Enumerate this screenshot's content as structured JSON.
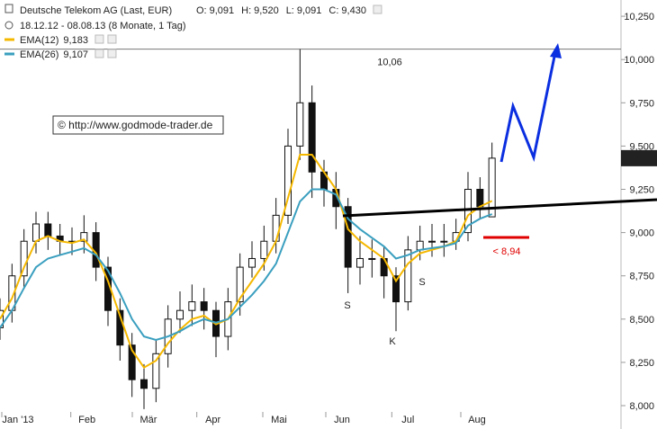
{
  "chart_data": {
    "type": "candlestick",
    "header": {
      "title": "Deutsche Telekom AG (Last, EUR)",
      "ohlc": [
        {
          "label": "O:",
          "value": "9,091"
        },
        {
          "label": "H:",
          "value": "9,520"
        },
        {
          "label": "L:",
          "value": "9,091"
        },
        {
          "label": "C:",
          "value": "9,430"
        }
      ],
      "period": "18.12.12 - 08.08.13 (8 Monate, 1 Tag)"
    },
    "watermark": "© http://www.godmode-trader.de",
    "x": [
      0,
      4,
      8,
      12,
      16,
      20,
      24,
      28,
      32,
      36,
      40,
      44,
      48,
      52,
      56,
      60,
      64,
      68,
      72,
      76,
      80,
      84,
      88,
      92,
      96,
      100,
      104,
      108,
      112,
      116,
      120,
      124,
      128,
      132,
      136,
      140,
      144,
      148,
      152,
      156,
      160,
      164
    ],
    "open": [
      8.45,
      8.55,
      8.75,
      8.95,
      9.05,
      8.98,
      8.95,
      8.95,
      9.0,
      8.8,
      8.55,
      8.35,
      8.15,
      8.1,
      8.3,
      8.5,
      8.55,
      8.6,
      8.55,
      8.4,
      8.6,
      8.8,
      8.85,
      8.95,
      9.1,
      9.5,
      9.75,
      9.35,
      9.25,
      9.15,
      8.8,
      8.85,
      8.85,
      8.75,
      8.6,
      8.9,
      8.95,
      8.95,
      8.95,
      9.0,
      9.25,
      9.091
    ],
    "high": [
      8.62,
      8.82,
      9.02,
      9.12,
      9.12,
      9.05,
      9.03,
      9.1,
      9.06,
      8.86,
      8.62,
      8.42,
      8.24,
      8.38,
      8.58,
      8.66,
      8.7,
      8.68,
      8.6,
      8.68,
      8.88,
      8.95,
      9.04,
      9.2,
      9.6,
      10.06,
      9.85,
      9.42,
      9.35,
      9.2,
      8.98,
      8.96,
      8.92,
      8.8,
      8.98,
      9.04,
      9.05,
      9.05,
      9.08,
      9.35,
      9.32,
      9.52
    ],
    "low": [
      8.38,
      8.48,
      8.68,
      8.88,
      8.9,
      8.87,
      8.87,
      8.88,
      8.72,
      8.46,
      8.26,
      8.05,
      7.98,
      8.02,
      8.22,
      8.42,
      8.46,
      8.44,
      8.28,
      8.32,
      8.52,
      8.74,
      8.78,
      8.88,
      9.05,
      9.42,
      9.2,
      9.15,
      9.02,
      8.65,
      8.7,
      8.74,
      8.62,
      8.43,
      8.55,
      8.84,
      8.86,
      8.86,
      8.9,
      8.95,
      9.08,
      9.091
    ],
    "close": [
      8.55,
      8.75,
      8.95,
      9.05,
      8.98,
      8.95,
      8.95,
      9.0,
      8.8,
      8.55,
      8.35,
      8.15,
      8.1,
      8.3,
      8.5,
      8.55,
      8.6,
      8.55,
      8.4,
      8.6,
      8.8,
      8.85,
      8.95,
      9.1,
      9.5,
      9.75,
      9.35,
      9.25,
      9.15,
      8.8,
      8.85,
      8.85,
      8.75,
      8.6,
      8.9,
      8.95,
      8.95,
      8.95,
      9.0,
      9.25,
      9.15,
      9.43
    ],
    "series": [
      {
        "name": "EMA(12)",
        "color": "#f5b800",
        "legend_label": "9,183",
        "values": [
          8.5,
          8.62,
          8.8,
          8.95,
          8.98,
          8.95,
          8.94,
          8.96,
          8.88,
          8.72,
          8.52,
          8.32,
          8.22,
          8.26,
          8.36,
          8.44,
          8.5,
          8.52,
          8.47,
          8.5,
          8.62,
          8.72,
          8.82,
          8.95,
          9.2,
          9.45,
          9.45,
          9.35,
          9.25,
          9.02,
          8.95,
          8.9,
          8.85,
          8.72,
          8.82,
          8.88,
          8.9,
          8.92,
          8.95,
          9.1,
          9.15,
          9.183
        ]
      },
      {
        "name": "EMA(26)",
        "color": "#3a9fbf",
        "legend_label": "9,107",
        "values": [
          8.45,
          8.55,
          8.68,
          8.8,
          8.85,
          8.87,
          8.89,
          8.91,
          8.87,
          8.78,
          8.65,
          8.5,
          8.4,
          8.38,
          8.4,
          8.43,
          8.47,
          8.5,
          8.48,
          8.5,
          8.57,
          8.64,
          8.72,
          8.82,
          9.0,
          9.18,
          9.25,
          9.25,
          9.22,
          9.08,
          9.02,
          8.97,
          8.92,
          8.85,
          8.87,
          8.9,
          8.91,
          8.92,
          8.94,
          9.04,
          9.08,
          9.107
        ]
      }
    ],
    "xlim": [
      0,
      207
    ],
    "xticks": [
      {
        "value": 6,
        "label": "Jan '13"
      },
      {
        "value": 29,
        "label": "Feb"
      },
      {
        "value": 49.5,
        "label": "Mär"
      },
      {
        "value": 71,
        "label": "Apr"
      },
      {
        "value": 93,
        "label": "Mai"
      },
      {
        "value": 114,
        "label": "Jun"
      },
      {
        "value": 136,
        "label": "Jul"
      },
      {
        "value": 159,
        "label": "Aug"
      }
    ],
    "ylim": [
      7.865,
      10.344
    ],
    "yticks": [
      {
        "value": 8,
        "label": "8,000"
      },
      {
        "value": 8.25,
        "label": "8,250"
      },
      {
        "value": 8.5,
        "label": "8,500"
      },
      {
        "value": 8.75,
        "label": "8,750"
      },
      {
        "value": 9,
        "label": "9,000"
      },
      {
        "value": 9.25,
        "label": "9,250"
      },
      {
        "value": 9.5,
        "label": "9,500"
      },
      {
        "value": 9.75,
        "label": "9,750"
      },
      {
        "value": 10,
        "label": "10,000"
      },
      {
        "value": 10.25,
        "label": "10,250"
      }
    ],
    "high_line": {
      "value": 10.06,
      "label": "10,06"
    },
    "annotations": {
      "shoulder_left": "S",
      "head": "K",
      "shoulder_right": "S",
      "stop": "< 8,94"
    }
  }
}
